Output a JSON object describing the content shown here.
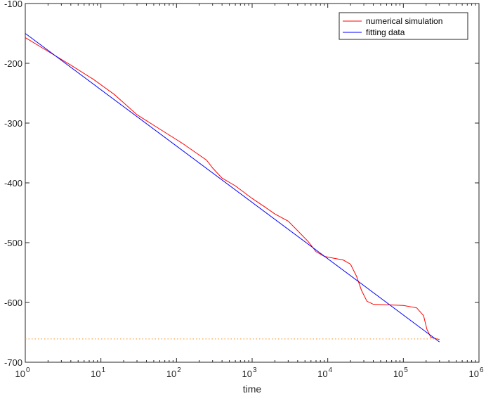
{
  "chart_data": {
    "type": "line",
    "title": "",
    "xlabel": "time",
    "ylabel": "",
    "xscale": "log",
    "xlim": [
      1,
      1000000
    ],
    "ylim": [
      -700,
      -100
    ],
    "grid": false,
    "legend_position": "top-right",
    "x_ticks": [
      {
        "value": 1,
        "base": "10",
        "exp": "0"
      },
      {
        "value": 10,
        "base": "10",
        "exp": "1"
      },
      {
        "value": 100,
        "base": "10",
        "exp": "2"
      },
      {
        "value": 1000,
        "base": "10",
        "exp": "3"
      },
      {
        "value": 10000,
        "base": "10",
        "exp": "4"
      },
      {
        "value": 100000,
        "base": "10",
        "exp": "5"
      },
      {
        "value": 1000000,
        "base": "10",
        "exp": "6"
      }
    ],
    "y_ticks": [
      {
        "value": -100,
        "label": "-100"
      },
      {
        "value": -200,
        "label": "-200"
      },
      {
        "value": -300,
        "label": "-300"
      },
      {
        "value": -400,
        "label": "-400"
      },
      {
        "value": -500,
        "label": "-500"
      },
      {
        "value": -600,
        "label": "-600"
      },
      {
        "value": -700,
        "label": "-700"
      }
    ],
    "series": [
      {
        "name": "numerical simulation",
        "color": "#ff0000",
        "style": "solid",
        "points": [
          [
            1,
            -157
          ],
          [
            2,
            -180
          ],
          [
            4,
            -203
          ],
          [
            8,
            -227
          ],
          [
            15,
            -252
          ],
          [
            20,
            -266
          ],
          [
            30,
            -286
          ],
          [
            60,
            -310
          ],
          [
            120,
            -334
          ],
          [
            250,
            -362
          ],
          [
            300,
            -375
          ],
          [
            400,
            -392
          ],
          [
            600,
            -405
          ],
          [
            1000,
            -426
          ],
          [
            1500,
            -441
          ],
          [
            2000,
            -452
          ],
          [
            3000,
            -464
          ],
          [
            4000,
            -480
          ],
          [
            5500,
            -498
          ],
          [
            7000,
            -515
          ],
          [
            9000,
            -523
          ],
          [
            12000,
            -526
          ],
          [
            16000,
            -529
          ],
          [
            20000,
            -536
          ],
          [
            24000,
            -556
          ],
          [
            28000,
            -580
          ],
          [
            33000,
            -598
          ],
          [
            40000,
            -603
          ],
          [
            60000,
            -604
          ],
          [
            100000,
            -605
          ],
          [
            150000,
            -609
          ],
          [
            185000,
            -622
          ],
          [
            205000,
            -645
          ],
          [
            230000,
            -658
          ],
          [
            300000,
            -662
          ]
        ]
      },
      {
        "name": "fitting data",
        "color": "#0000ff",
        "style": "solid",
        "points": [
          [
            1,
            -150
          ],
          [
            300000,
            -666
          ]
        ]
      },
      {
        "name": "",
        "color": "#ff8c1a",
        "style": "dotted",
        "points": [
          [
            1,
            -661
          ],
          [
            300000,
            -661
          ]
        ]
      }
    ]
  }
}
